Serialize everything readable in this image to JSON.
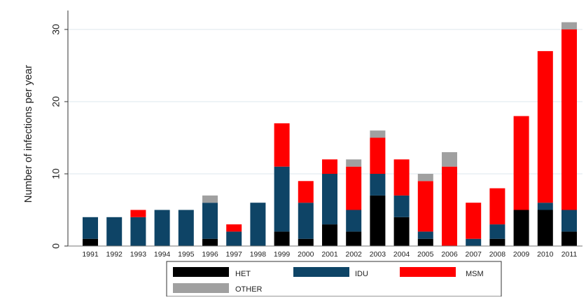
{
  "chart_data": {
    "type": "bar",
    "stacked": true,
    "title": "",
    "xlabel": "",
    "ylabel": "Number of infections per year",
    "ylim": [
      0,
      32
    ],
    "yticks": [
      0,
      10,
      20,
      30
    ],
    "grid": true,
    "legend_position": "bottom",
    "categories": [
      "1991",
      "1992",
      "1993",
      "1994",
      "1995",
      "1996",
      "1997",
      "1998",
      "1999",
      "2000",
      "2001",
      "2002",
      "2003",
      "2004",
      "2005",
      "2006",
      "2007",
      "2008",
      "2009",
      "2010",
      "2011"
    ],
    "series": [
      {
        "name": "HET",
        "color": "#000000",
        "values": [
          1,
          0,
          0,
          0,
          0,
          1,
          0,
          0,
          2,
          1,
          3,
          2,
          7,
          4,
          1,
          0,
          0,
          1,
          5,
          5,
          2
        ]
      },
      {
        "name": "IDU",
        "color": "#0e4466",
        "values": [
          3,
          4,
          4,
          5,
          5,
          5,
          2,
          6,
          9,
          5,
          7,
          3,
          3,
          3,
          1,
          0,
          1,
          2,
          0,
          1,
          3
        ]
      },
      {
        "name": "MSM",
        "color": "#ff0000",
        "values": [
          0,
          0,
          1,
          0,
          0,
          0,
          1,
          0,
          6,
          3,
          2,
          6,
          5,
          5,
          7,
          11,
          5,
          5,
          13,
          21,
          25
        ]
      },
      {
        "name": "OTHER",
        "color": "#a0a0a0",
        "values": [
          0,
          0,
          0,
          0,
          0,
          1,
          0,
          0,
          0,
          0,
          0,
          1,
          1,
          0,
          1,
          2,
          0,
          0,
          0,
          0,
          1
        ]
      }
    ]
  }
}
